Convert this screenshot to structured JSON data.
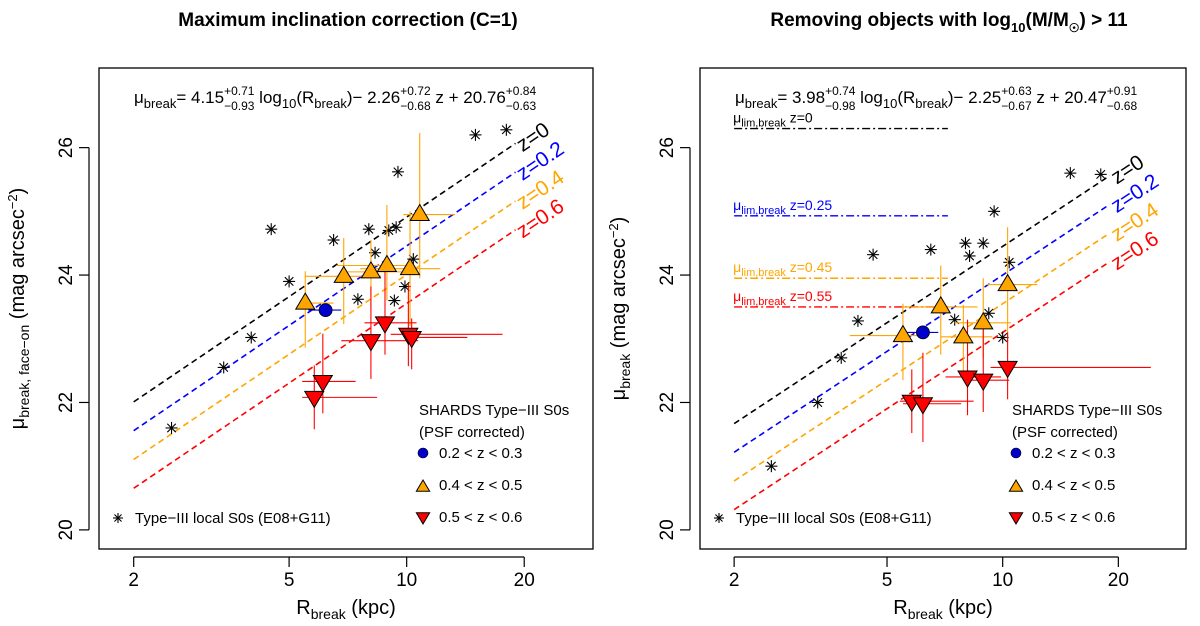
{
  "chart_data": [
    {
      "type": "scatter",
      "title": "Maximum inclination correction (C=1)",
      "xlabel": "R",
      "xlabel_sub": "break",
      "xlabel_unit": " (kpc)",
      "ylabel": "μ",
      "ylabel_sub": "break, face−on",
      "ylabel_unit": " (mag arcsec",
      "ylabel_sup": "−2",
      "ylabel_close": ")",
      "x_scale": "log",
      "xlim": [
        1.63,
        30.0
      ],
      "ylim": [
        19.7,
        27.25
      ],
      "x_ticks": [
        2,
        5,
        10,
        20
      ],
      "y_ticks": [
        20,
        22,
        24,
        26
      ],
      "equation": {
        "lhs": "μ",
        "lhs_sub": "break",
        "eq": "=",
        "c1": "4.15",
        "c1_up": "+0.71",
        "c1_dn": "−0.93",
        "t1": " log",
        "t1_sub": "10",
        "t1b": "(R",
        "t1b_sub": "break",
        "t1c": ")",
        "c2": "− 2.26",
        "c2_up": "+0.72",
        "c2_dn": "−0.68",
        "t2": " z + ",
        "c3": "20.76",
        "c3_up": "+0.84",
        "c3_dn": "−0.63"
      },
      "fit": {
        "slope": 4.15,
        "z_coef": -2.26,
        "intercept": 20.76,
        "x_range": [
          2,
          19
        ]
      },
      "fit_lines": [
        {
          "z": 0,
          "label": "z=0",
          "color": "#000000"
        },
        {
          "z": 0.2,
          "label": "z=0.2",
          "color": "#0000ff"
        },
        {
          "z": 0.4,
          "label": "z=0.4",
          "color": "#ffa500"
        },
        {
          "z": 0.6,
          "label": "z=0.6",
          "color": "#ff0000"
        }
      ],
      "lim_lines": [],
      "local_s0s": [
        [
          2.5,
          21.6
        ],
        [
          3.4,
          22.55
        ],
        [
          4.0,
          23.02
        ],
        [
          4.5,
          24.72
        ],
        [
          5.0,
          23.9
        ],
        [
          6.5,
          24.55
        ],
        [
          7.5,
          23.62
        ],
        [
          8.0,
          24.72
        ],
        [
          8.3,
          24.35
        ],
        [
          9.0,
          24.7
        ],
        [
          9.4,
          24.75
        ],
        [
          9.5,
          25.62
        ],
        [
          9.3,
          23.6
        ],
        [
          9.9,
          23.82
        ],
        [
          10.4,
          24.25
        ],
        [
          15.0,
          26.2
        ],
        [
          18.0,
          26.28
        ]
      ],
      "shards": {
        "low": [
          {
            "x": 6.2,
            "y": 23.45,
            "xerr": [
              0.6,
              0.6
            ],
            "yerr": [
              0,
              0
            ]
          }
        ],
        "mid": [
          {
            "x": 5.5,
            "y": 23.56,
            "xerr": [
              0.1,
              1.0
            ],
            "yerr": [
              0.7,
              0.5
            ]
          },
          {
            "x": 6.9,
            "y": 23.98,
            "xerr": [
              1.4,
              1.7
            ],
            "yerr": [
              0.75,
              0.6
            ]
          },
          {
            "x": 8.1,
            "y": 24.05,
            "xerr": [
              1.1,
              1.6
            ],
            "yerr": [
              0.6,
              0.5
            ]
          },
          {
            "x": 8.9,
            "y": 24.15,
            "xerr": [
              2.3,
              1.4
            ],
            "yerr": [
              0.55,
              0.95
            ]
          },
          {
            "x": 10.2,
            "y": 24.1,
            "xerr": [
              2.6,
              2.0
            ],
            "yerr": [
              0.9,
              0.9
            ]
          },
          {
            "x": 10.8,
            "y": 24.95,
            "xerr": [
              1.0,
              2.5
            ],
            "yerr": [
              1.0,
              1.28
            ]
          }
        ],
        "high": [
          {
            "x": 5.8,
            "y": 22.08,
            "xerr": [
              0.4,
              2.6
            ],
            "yerr": [
              0.5,
              0.5
            ]
          },
          {
            "x": 6.1,
            "y": 22.33,
            "xerr": [
              0.7,
              1.3
            ],
            "yerr": [
              0.5,
              0.75
            ]
          },
          {
            "x": 8.1,
            "y": 22.97,
            "xerr": [
              1.3,
              2.6
            ],
            "yerr": [
              0.6,
              0.85
            ]
          },
          {
            "x": 8.8,
            "y": 23.25,
            "xerr": [
              1.0,
              1.8
            ],
            "yerr": [
              0.5,
              0.95
            ]
          },
          {
            "x": 10.1,
            "y": 23.07,
            "xerr": [
              1.0,
              7.5
            ],
            "yerr": [
              0.5,
              0.8
            ]
          },
          {
            "x": 10.3,
            "y": 23.02,
            "xerr": [
              0.3,
              4.0
            ],
            "yerr": [
              0.5,
              0.3
            ]
          }
        ]
      },
      "legend": {
        "title1": "SHARDS Type−III S0s",
        "title2": "(PSF corrected)",
        "low": "0.2 < z < 0.3",
        "mid": "0.4 < z < 0.5",
        "high": "0.5 < z < 0.6",
        "local": "Type−III local S0s (E08+G11)"
      },
      "colors": {
        "low": "#0000cc",
        "mid": "#ffa500",
        "high": "#ff0000",
        "local": "#000000"
      }
    },
    {
      "type": "scatter",
      "title": "Removing objects with log",
      "title_sub": "10",
      "title_b": "(M/M",
      "title_sun_sub": "☉",
      "title_c": ") > 11",
      "xlabel": "R",
      "xlabel_sub": "break",
      "xlabel_unit": " (kpc)",
      "ylabel": "μ",
      "ylabel_sub": "break",
      "ylabel_unit": " (mag arcsec",
      "ylabel_sup": "−2",
      "ylabel_close": ")",
      "x_scale": "log",
      "xlim": [
        1.63,
        30.0
      ],
      "ylim": [
        19.7,
        27.25
      ],
      "x_ticks": [
        2,
        5,
        10,
        20
      ],
      "y_ticks": [
        20,
        22,
        24,
        26
      ],
      "equation": {
        "lhs": "μ",
        "lhs_sub": "break",
        "eq": "=",
        "c1": "3.98",
        "c1_up": "+0.74",
        "c1_dn": "−0.98",
        "t1": " log",
        "t1_sub": "10",
        "t1b": "(R",
        "t1b_sub": "break",
        "t1c": ")",
        "c2": "− 2.25",
        "c2_up": "+0.63",
        "c2_dn": "−0.67",
        "t2": " z + ",
        "c3": "20.47",
        "c3_up": "+0.91",
        "c3_dn": "−0.68"
      },
      "fit": {
        "slope": 3.98,
        "z_coef": -2.25,
        "intercept": 20.47,
        "x_range": [
          2,
          19
        ]
      },
      "fit_lines": [
        {
          "z": 0,
          "label": "z=0",
          "color": "#000000"
        },
        {
          "z": 0.2,
          "label": "z=0.2",
          "color": "#0000ff"
        },
        {
          "z": 0.4,
          "label": "z=0.4",
          "color": "#ffa500"
        },
        {
          "z": 0.6,
          "label": "z=0.6",
          "color": "#ff0000"
        }
      ],
      "lim_lines": [
        {
          "y": 26.3,
          "label": "μ",
          "label_sub": "lim,break",
          "label_z": " z=0",
          "color": "#000000"
        },
        {
          "y": 24.93,
          "label": "μ",
          "label_sub": "lim,break",
          "label_z": " z=0.25",
          "color": "#0000ff"
        },
        {
          "y": 23.95,
          "label": "μ",
          "label_sub": "lim,break",
          "label_z": " z=0.45",
          "color": "#ffa500"
        },
        {
          "y": 23.5,
          "label": "μ",
          "label_sub": "lim,break",
          "label_z": " z=0.55",
          "color": "#ff0000"
        }
      ],
      "local_s0s": [
        [
          2.5,
          21.0
        ],
        [
          3.3,
          22.0
        ],
        [
          3.8,
          22.7
        ],
        [
          4.2,
          23.28
        ],
        [
          4.6,
          24.32
        ],
        [
          6.5,
          24.4
        ],
        [
          7.5,
          23.3
        ],
        [
          8.0,
          24.5
        ],
        [
          8.2,
          24.3
        ],
        [
          8.9,
          24.5
        ],
        [
          9.5,
          25.0
        ],
        [
          9.2,
          23.4
        ],
        [
          10.0,
          23.02
        ],
        [
          10.4,
          24.2
        ],
        [
          15.0,
          25.6
        ],
        [
          18.0,
          25.58
        ]
      ],
      "shards": {
        "low": [
          {
            "x": 6.2,
            "y": 23.1,
            "xerr": [
              0.6,
              0.6
            ],
            "yerr": [
              0,
              0
            ]
          }
        ],
        "mid": [
          {
            "x": 5.5,
            "y": 23.05,
            "xerr": [
              1.5,
              0.9
            ],
            "yerr": [
              0.7,
              0.5
            ]
          },
          {
            "x": 6.9,
            "y": 23.5,
            "xerr": [
              1.4,
              1.7
            ],
            "yerr": [
              0.75,
              0.65
            ]
          },
          {
            "x": 7.9,
            "y": 23.03,
            "xerr": [
              1.0,
              1.5
            ],
            "yerr": [
              0.6,
              0.5
            ]
          },
          {
            "x": 8.9,
            "y": 23.25,
            "xerr": [
              1.4,
              1.6
            ],
            "yerr": [
              0.55,
              0.7
            ]
          },
          {
            "x": 10.3,
            "y": 23.85,
            "xerr": [
              1.2,
              2.0
            ],
            "yerr": [
              0.9,
              0.9
            ]
          }
        ],
        "high": [
          {
            "x": 5.8,
            "y": 22.02,
            "xerr": [
              0.4,
              2.6
            ],
            "yerr": [
              0.5,
              0.5
            ]
          },
          {
            "x": 6.2,
            "y": 21.98,
            "xerr": [
              0.7,
              1.6
            ],
            "yerr": [
              0.6,
              0.8
            ]
          },
          {
            "x": 8.1,
            "y": 22.4,
            "xerr": [
              1.0,
              1.8
            ],
            "yerr": [
              0.6,
              0.9
            ]
          },
          {
            "x": 8.9,
            "y": 22.35,
            "xerr": [
              1.0,
              1.5
            ],
            "yerr": [
              0.5,
              0.9
            ]
          },
          {
            "x": 10.3,
            "y": 22.55,
            "xerr": [
              1.0,
              14.0
            ],
            "yerr": [
              0.5,
              0.55
            ]
          }
        ]
      },
      "legend": {
        "title1": "SHARDS Type−III S0s",
        "title2": "(PSF corrected)",
        "low": "0.2 < z < 0.3",
        "mid": "0.4 < z < 0.5",
        "high": "0.5 < z < 0.6",
        "local": "Type−III local S0s (E08+G11)"
      },
      "colors": {
        "low": "#0000cc",
        "mid": "#ffa500",
        "high": "#ff0000",
        "local": "#000000"
      }
    }
  ]
}
